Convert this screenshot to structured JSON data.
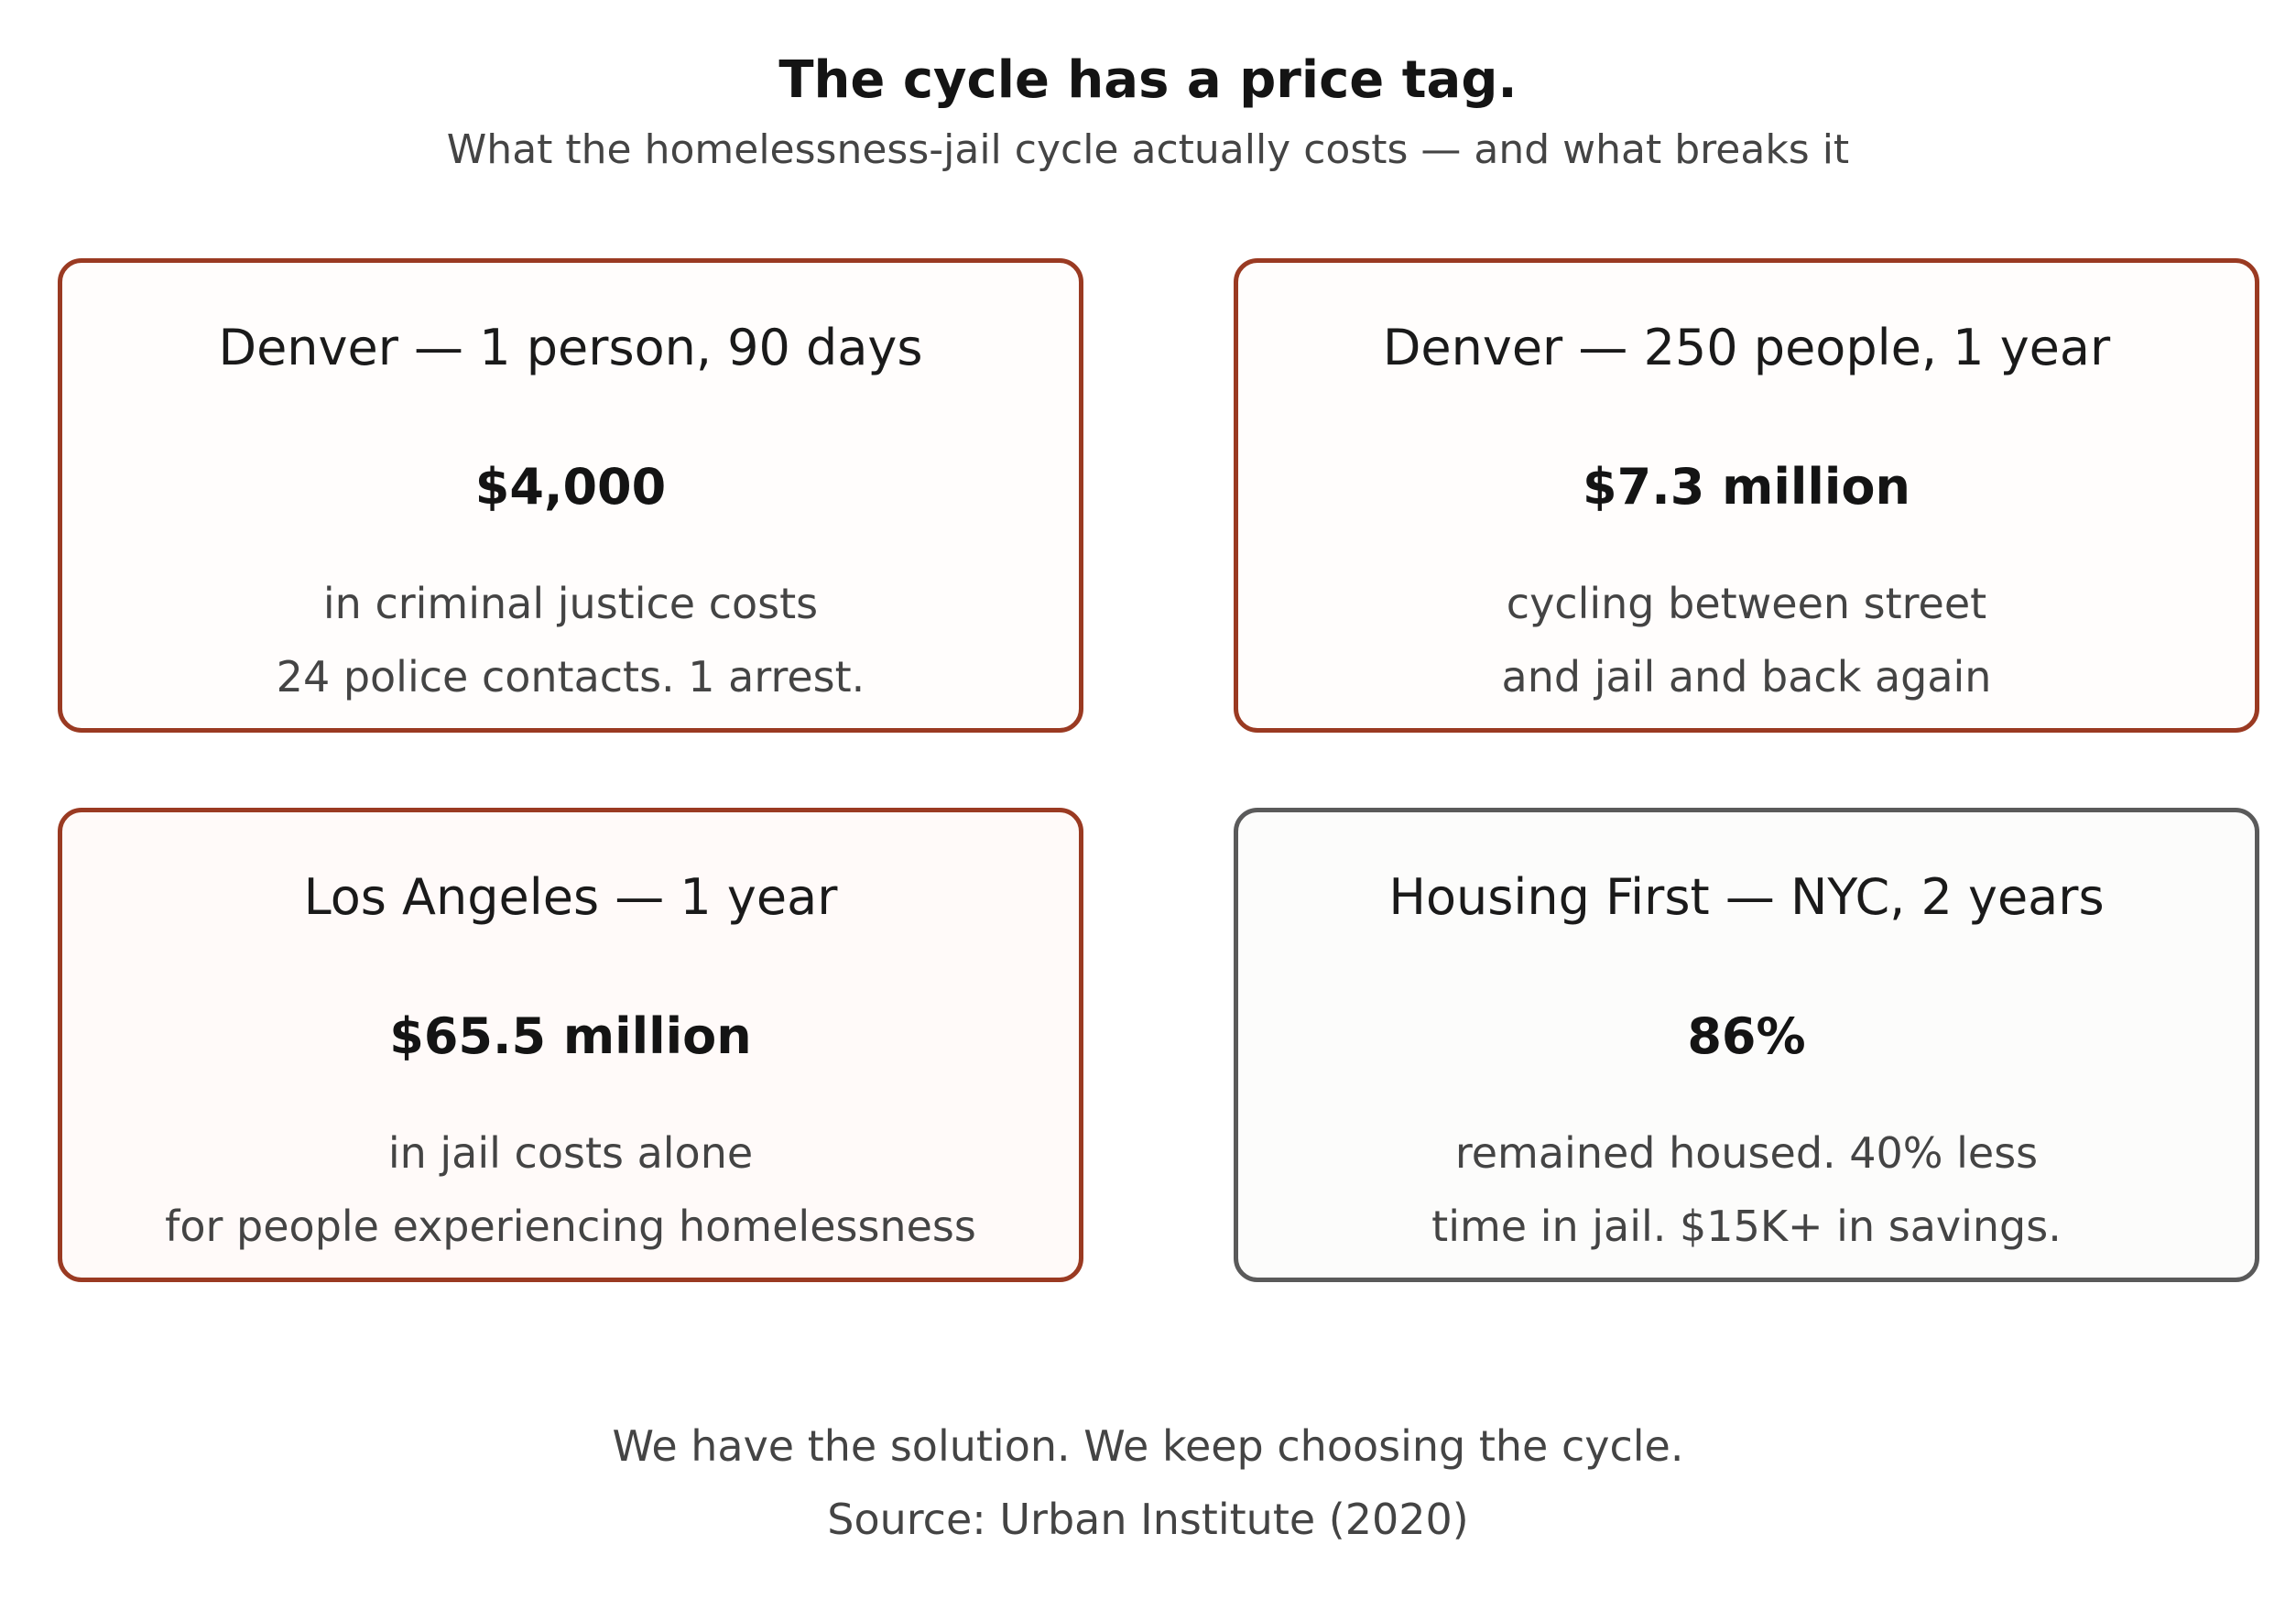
{
  "header": {
    "title": "The cycle has a price tag.",
    "subtitle": "What the homelessness-jail cycle actually costs — and what breaks it"
  },
  "cards": [
    {
      "heading": "Denver — 1 person, 90 days",
      "value": "$4,000",
      "line1": "in criminal justice costs",
      "line2": "24 police contacts. 1 arrest.",
      "border_color": "#9a3a22"
    },
    {
      "heading": "Denver — 250 people, 1 year",
      "value": "$7.3 million",
      "line1": "cycling between street",
      "line2": "and jail and back again",
      "border_color": "#9a3a22"
    },
    {
      "heading": "Los Angeles — 1 year",
      "value": "$65.5 million",
      "line1": "in jail costs alone",
      "line2": "for people experiencing homelessness",
      "border_color": "#9a3a22"
    },
    {
      "heading": "Housing First — NYC, 2 years",
      "value": "86%",
      "line1": "remained housed. 40% less",
      "line2": "time in jail. $15K+ in savings.",
      "border_color": "#5a5a5a"
    }
  ],
  "footer": {
    "tagline": "We have the solution. We keep choosing the cycle.",
    "source": "Source: Urban Institute (2020)"
  }
}
